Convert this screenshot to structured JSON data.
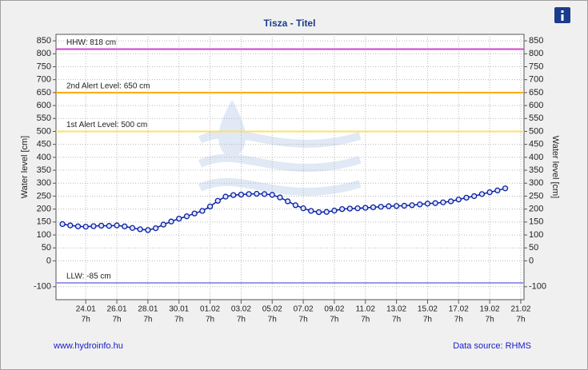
{
  "chart_data": {
    "type": "line",
    "title": "Tisza - Titel",
    "y_label": "Water level [cm]",
    "y2_label": "Water level [cm]",
    "footer_left": "www.hydroinfo.hu",
    "footer_right": "Data source: RHMS",
    "x": [
      "22.01 19h",
      "23.01 7h",
      "23.01 19h",
      "24.01 7h",
      "24.01 19h",
      "25.01 7h",
      "25.01 19h",
      "26.01 7h",
      "26.01 19h",
      "27.01 7h",
      "27.01 19h",
      "28.01 7h",
      "28.01 19h",
      "29.01 7h",
      "29.01 19h",
      "30.01 7h",
      "30.01 19h",
      "31.01 7h",
      "31.01 19h",
      "01.02 7h",
      "01.02 19h",
      "02.02 7h",
      "02.02 19h",
      "03.02 7h",
      "03.02 19h",
      "04.02 7h",
      "04.02 19h",
      "05.02 7h",
      "05.02 19h",
      "06.02 7h",
      "06.02 19h",
      "07.02 7h",
      "07.02 19h",
      "08.02 7h",
      "08.02 19h",
      "09.02 7h",
      "09.02 19h",
      "10.02 7h",
      "10.02 19h",
      "11.02 7h",
      "11.02 19h",
      "12.02 7h",
      "12.02 19h",
      "13.02 7h",
      "13.02 19h",
      "14.02 7h",
      "14.02 19h",
      "15.02 7h",
      "15.02 19h",
      "16.02 7h",
      "16.02 19h",
      "17.02 7h",
      "17.02 19h",
      "18.02 7h",
      "18.02 19h",
      "19.02 7h",
      "19.02 19h",
      "20.02 7h"
    ],
    "series": [
      {
        "color": "#0a1fa0",
        "values": [
          142,
          137,
          133,
          132,
          134,
          136,
          135,
          137,
          133,
          127,
          122,
          119,
          126,
          140,
          152,
          163,
          172,
          183,
          193,
          210,
          232,
          248,
          254,
          256,
          258,
          259,
          258,
          255,
          245,
          230,
          215,
          203,
          193,
          188,
          189,
          194,
          200,
          202,
          203,
          205,
          207,
          209,
          211,
          212,
          213,
          215,
          218,
          221,
          223,
          226,
          230,
          237,
          244,
          250,
          258,
          265,
          272,
          280
        ]
      }
    ],
    "xlim": [
      "22.01 9h",
      "21.02 12h"
    ],
    "xticks": [
      "24.01",
      "26.01",
      "28.01",
      "30.01",
      "01.02",
      "03.02",
      "05.02",
      "07.02",
      "09.02",
      "11.02",
      "13.02",
      "15.02",
      "17.02",
      "19.02",
      "21.02"
    ],
    "xtick_hour": "7h",
    "ylim": [
      -150,
      875
    ],
    "yticks": [
      -100,
      0,
      50,
      100,
      150,
      200,
      250,
      300,
      350,
      400,
      450,
      500,
      550,
      600,
      650,
      700,
      750,
      800,
      850
    ],
    "grid": true,
    "reference_lines": [
      {
        "value": 818,
        "label": "HHW: 818 cm",
        "color": "#cc44cc"
      },
      {
        "value": 650,
        "label": "2nd Alert Level: 650 cm",
        "color": "#ffaa00"
      },
      {
        "value": 500,
        "label": "1st Alert Level: 500 cm",
        "color": "#ffe060"
      },
      {
        "value": -85,
        "label": "LLW: -85 cm",
        "color": "#9a9ae8"
      }
    ]
  }
}
